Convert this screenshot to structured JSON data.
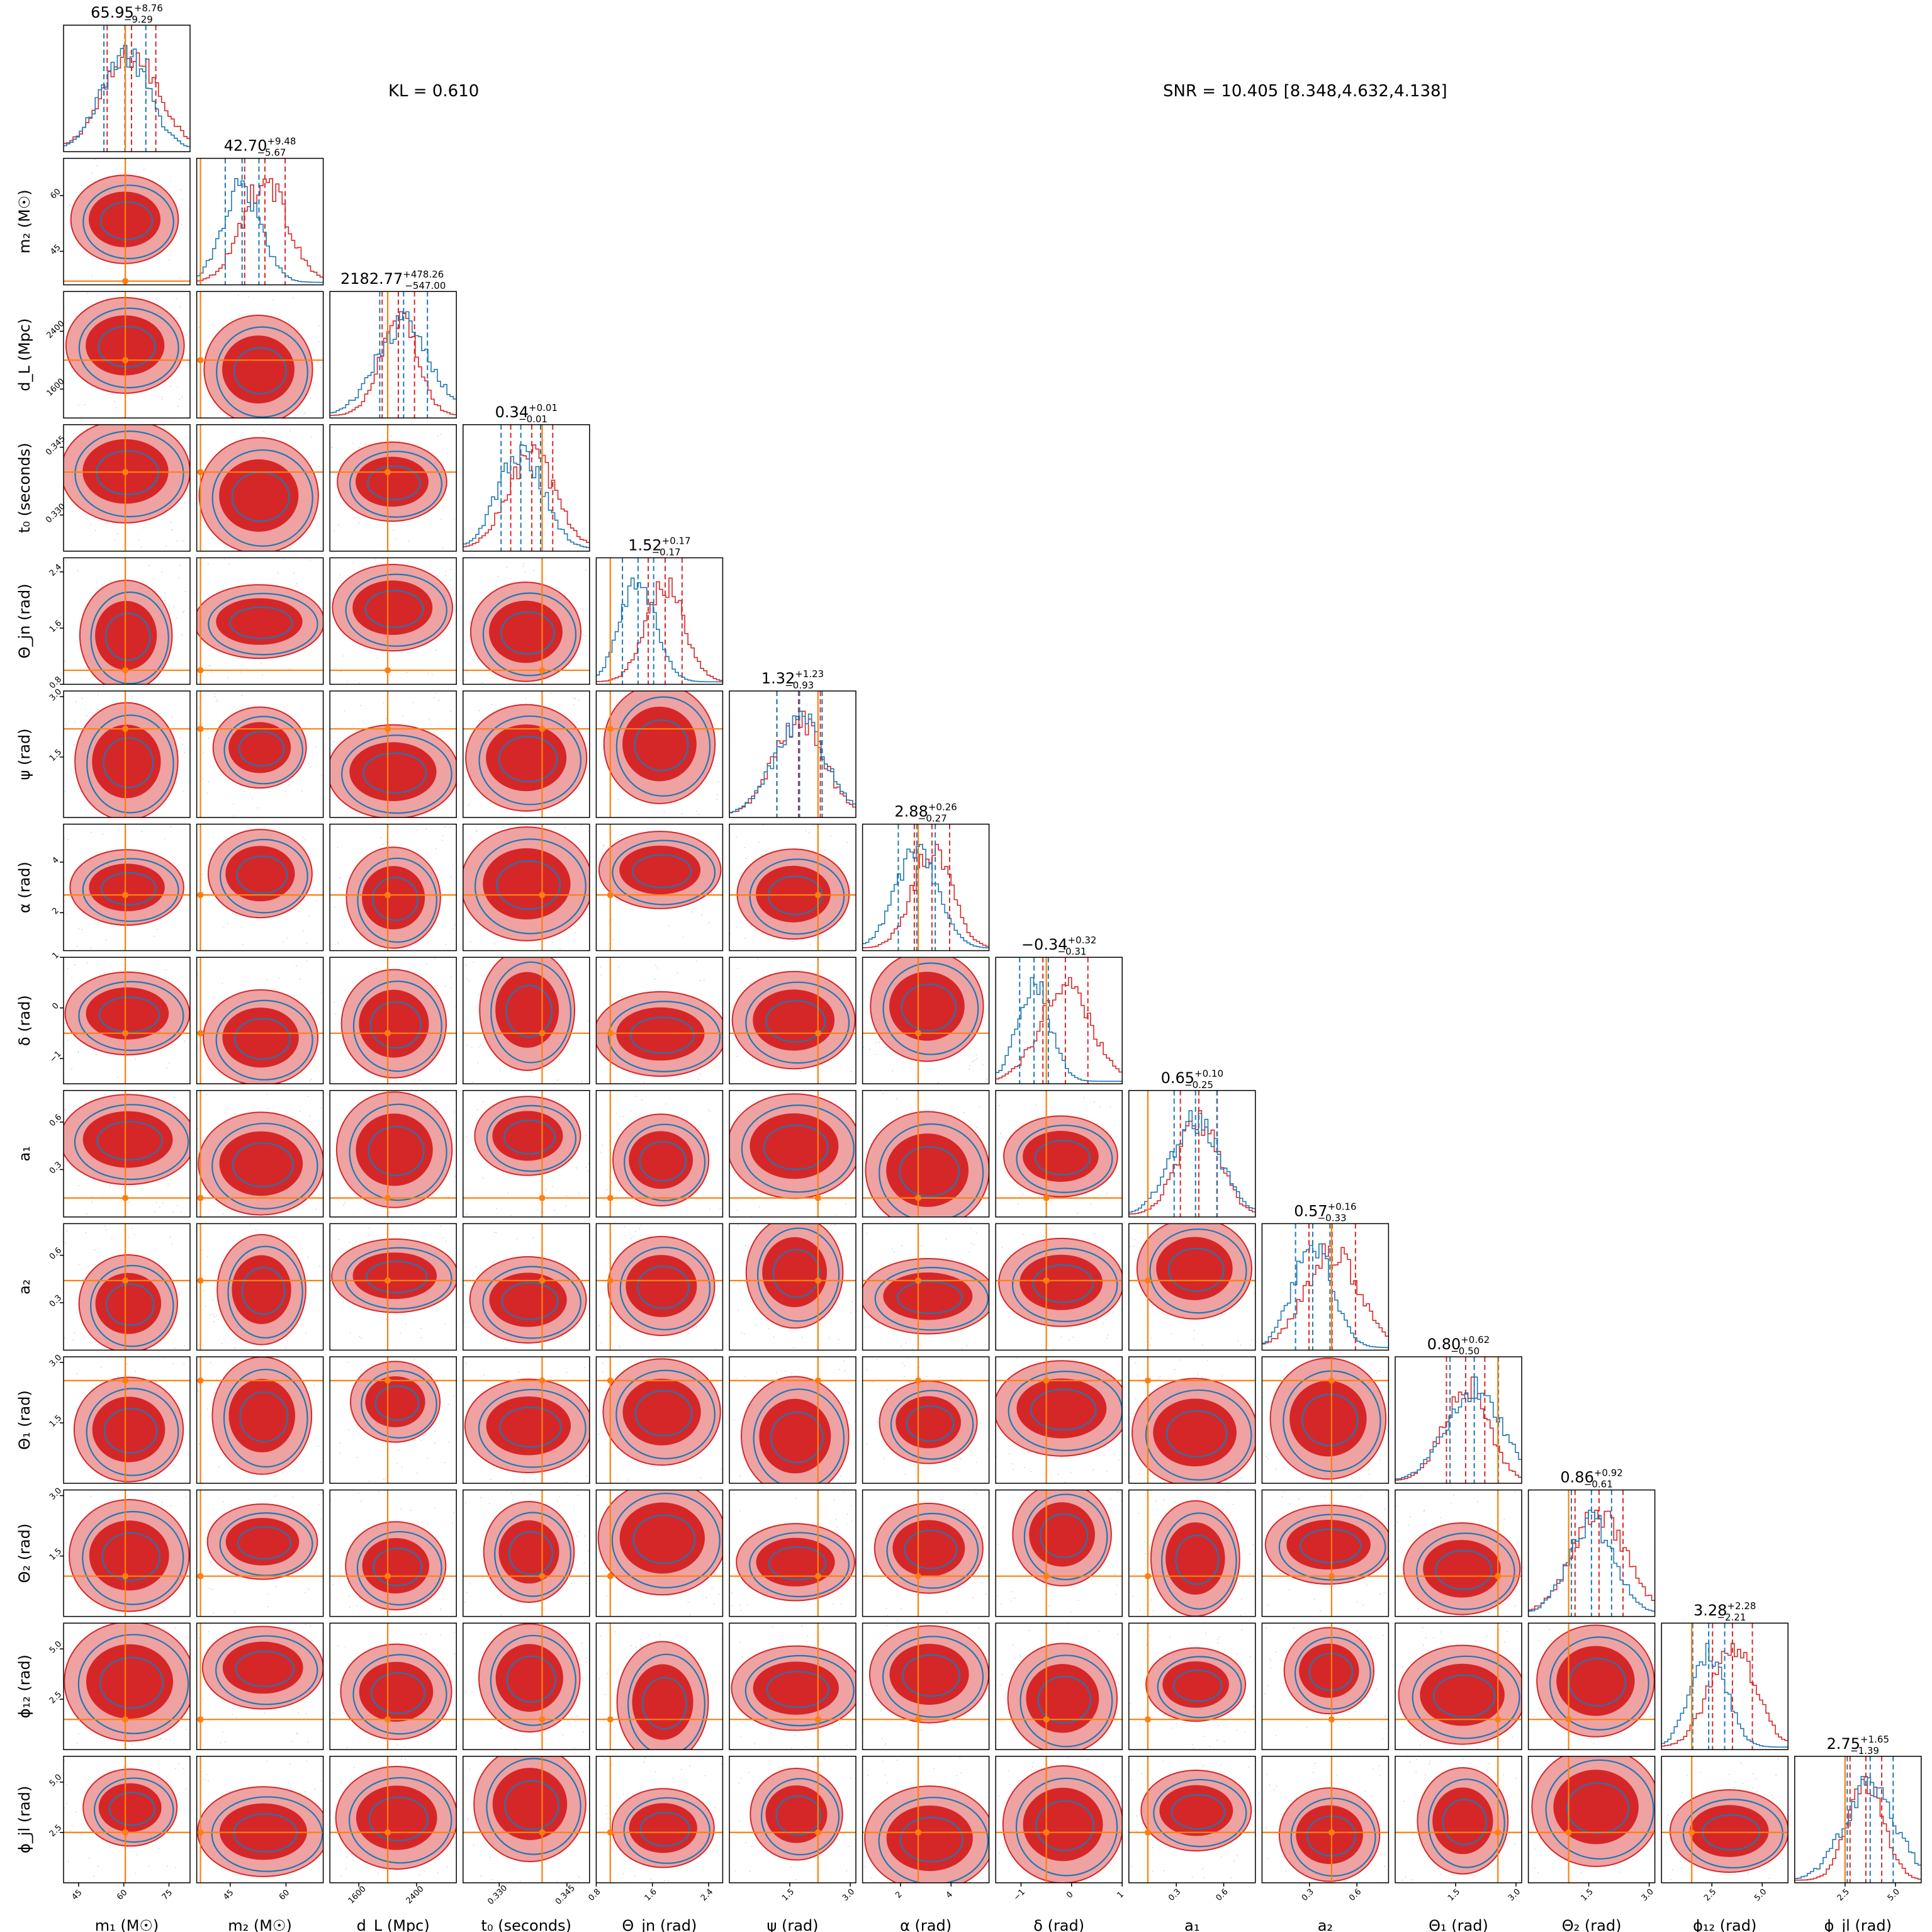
{
  "header": {
    "kl_text": "KL = 0.610",
    "snr_text": "SNR = 10.405 [8.348,4.632,4.138]"
  },
  "colors": {
    "red": "#d62728",
    "blue": "#1f77b4",
    "truth": "#ff7f0e",
    "red_fill_light": "#eea2a2"
  },
  "chart_data": {
    "type": "corner",
    "parameters": [
      {
        "label": "m₁ (M☉)",
        "title_value": "65.95",
        "plus": "+8.76",
        "minus": "−9.29",
        "range": [
          40,
          82
        ],
        "ticks": [
          45,
          60,
          75
        ],
        "truth": 60.5
      },
      {
        "label": "m₂ (M☉)",
        "title_value": "42.70",
        "plus": "+9.48",
        "minus": "−5.67",
        "range": [
          36,
          70
        ],
        "ticks": [
          45,
          60
        ],
        "truth": 37.0
      },
      {
        "label": "d_L (Mpc)",
        "title_value": "2182.77",
        "plus": "+478.26",
        "minus": "−547.00",
        "range": [
          1200,
          2950
        ],
        "ticks": [
          1600,
          2400
        ],
        "truth": 2000
      },
      {
        "label": "t₀ (seconds)",
        "title_value": "0.34",
        "plus": "+0.01",
        "minus": "−0.01",
        "range": [
          0.322,
          0.35
        ],
        "ticks": [
          0.33,
          0.345
        ],
        "truth": 0.3395
      },
      {
        "label": "Θ_jn (rad)",
        "title_value": "1.52",
        "plus": "+0.17",
        "minus": "−0.17",
        "range": [
          0.8,
          2.6
        ],
        "ticks": [
          0.8,
          1.6,
          2.4
        ],
        "truth": 1.0
      },
      {
        "label": "ψ (rad)",
        "title_value": "1.32",
        "plus": "+1.23",
        "minus": "−0.93",
        "range": [
          0,
          3.14
        ],
        "ticks": [
          1.5,
          3.0
        ],
        "truth": 2.2
      },
      {
        "label": "α (rad)",
        "title_value": "2.88",
        "plus": "+0.26",
        "minus": "−0.27",
        "range": [
          0.5,
          5.5
        ],
        "ticks": [
          2,
          4
        ],
        "truth": 2.7
      },
      {
        "label": "δ (rad)",
        "title_value": "−0.34",
        "plus": "+0.32",
        "minus": "−0.31",
        "range": [
          -1.5,
          1.0
        ],
        "ticks": [
          -1,
          0,
          1
        ],
        "truth": -0.5
      },
      {
        "label": "a₁",
        "title_value": "0.65",
        "plus": "+0.10",
        "minus": "−0.25",
        "range": [
          0,
          0.8
        ],
        "ticks": [
          0.3,
          0.6
        ],
        "truth": 0.12
      },
      {
        "label": "a₂",
        "title_value": "0.57",
        "plus": "+0.16",
        "minus": "−0.33",
        "range": [
          0,
          0.8
        ],
        "ticks": [
          0.3,
          0.6
        ],
        "truth": 0.44
      },
      {
        "label": "Θ₁ (rad)",
        "title_value": "0.80",
        "plus": "+0.62",
        "minus": "−0.50",
        "range": [
          0,
          3.14
        ],
        "ticks": [
          1.5,
          3.0
        ],
        "truth": 2.55
      },
      {
        "label": "Θ₂ (rad)",
        "title_value": "0.86",
        "plus": "+0.92",
        "minus": "−0.61",
        "range": [
          0,
          3.14
        ],
        "ticks": [
          1.5,
          3.0
        ],
        "truth": 1.0
      },
      {
        "label": "ϕ₁₂ (rad)",
        "title_value": "3.28",
        "plus": "+2.28",
        "minus": "−2.21",
        "range": [
          0,
          6.28
        ],
        "ticks": [
          2.5,
          5.0
        ],
        "truth": 1.5
      },
      {
        "label": "ϕ_jl (rad)",
        "title_value": "2.75",
        "plus": "+1.65",
        "minus": "−1.39",
        "range": [
          0,
          6.28
        ],
        "ticks": [
          2.5,
          5.0
        ],
        "truth": 2.5
      }
    ],
    "y_axis_ticks": {
      "1": [
        "45",
        "60"
      ],
      "2": [
        "1600",
        "2400"
      ],
      "3": [
        "0.330",
        "0.345"
      ],
      "4": [
        "0.8",
        "1.6",
        "2.4"
      ],
      "5": [
        "1.5",
        "3.0"
      ],
      "6": [
        "2",
        "4"
      ],
      "7": [
        "−1",
        "0",
        "1"
      ],
      "8": [
        "0.3",
        "0.6"
      ],
      "9": [
        "0.3",
        "0.6"
      ],
      "10": [
        "1.5",
        "3.0"
      ],
      "11": [
        "1.5",
        "3.0"
      ],
      "12": [
        "2.5",
        "5.0"
      ],
      "13": [
        "2.5",
        "5.0"
      ]
    },
    "x_axis_ticks": {
      "0": [
        "45",
        "60",
        "75"
      ],
      "1": [
        "45",
        "60"
      ],
      "2": [
        "1600",
        "2400"
      ],
      "3": [
        "0.330",
        "0.345"
      ],
      "4": [
        "0.8",
        "1.6",
        "2.4"
      ],
      "5": [
        "1.5",
        "3.0"
      ],
      "6": [
        "2",
        "4"
      ],
      "7": [
        "−1",
        "0",
        "1"
      ],
      "8": [
        "0.3",
        "0.6"
      ],
      "9": [
        "0.3",
        "0.6"
      ],
      "10": [
        "1.5",
        "3.0"
      ],
      "11": [
        "1.5",
        "3.0"
      ],
      "12": [
        "2.5",
        "5.0"
      ],
      "13": [
        "2.5",
        "5.0"
      ]
    },
    "series": [
      {
        "name": "",
        "color": "#d62728"
      },
      {
        "name": "",
        "color": "#1f77b4"
      }
    ]
  }
}
